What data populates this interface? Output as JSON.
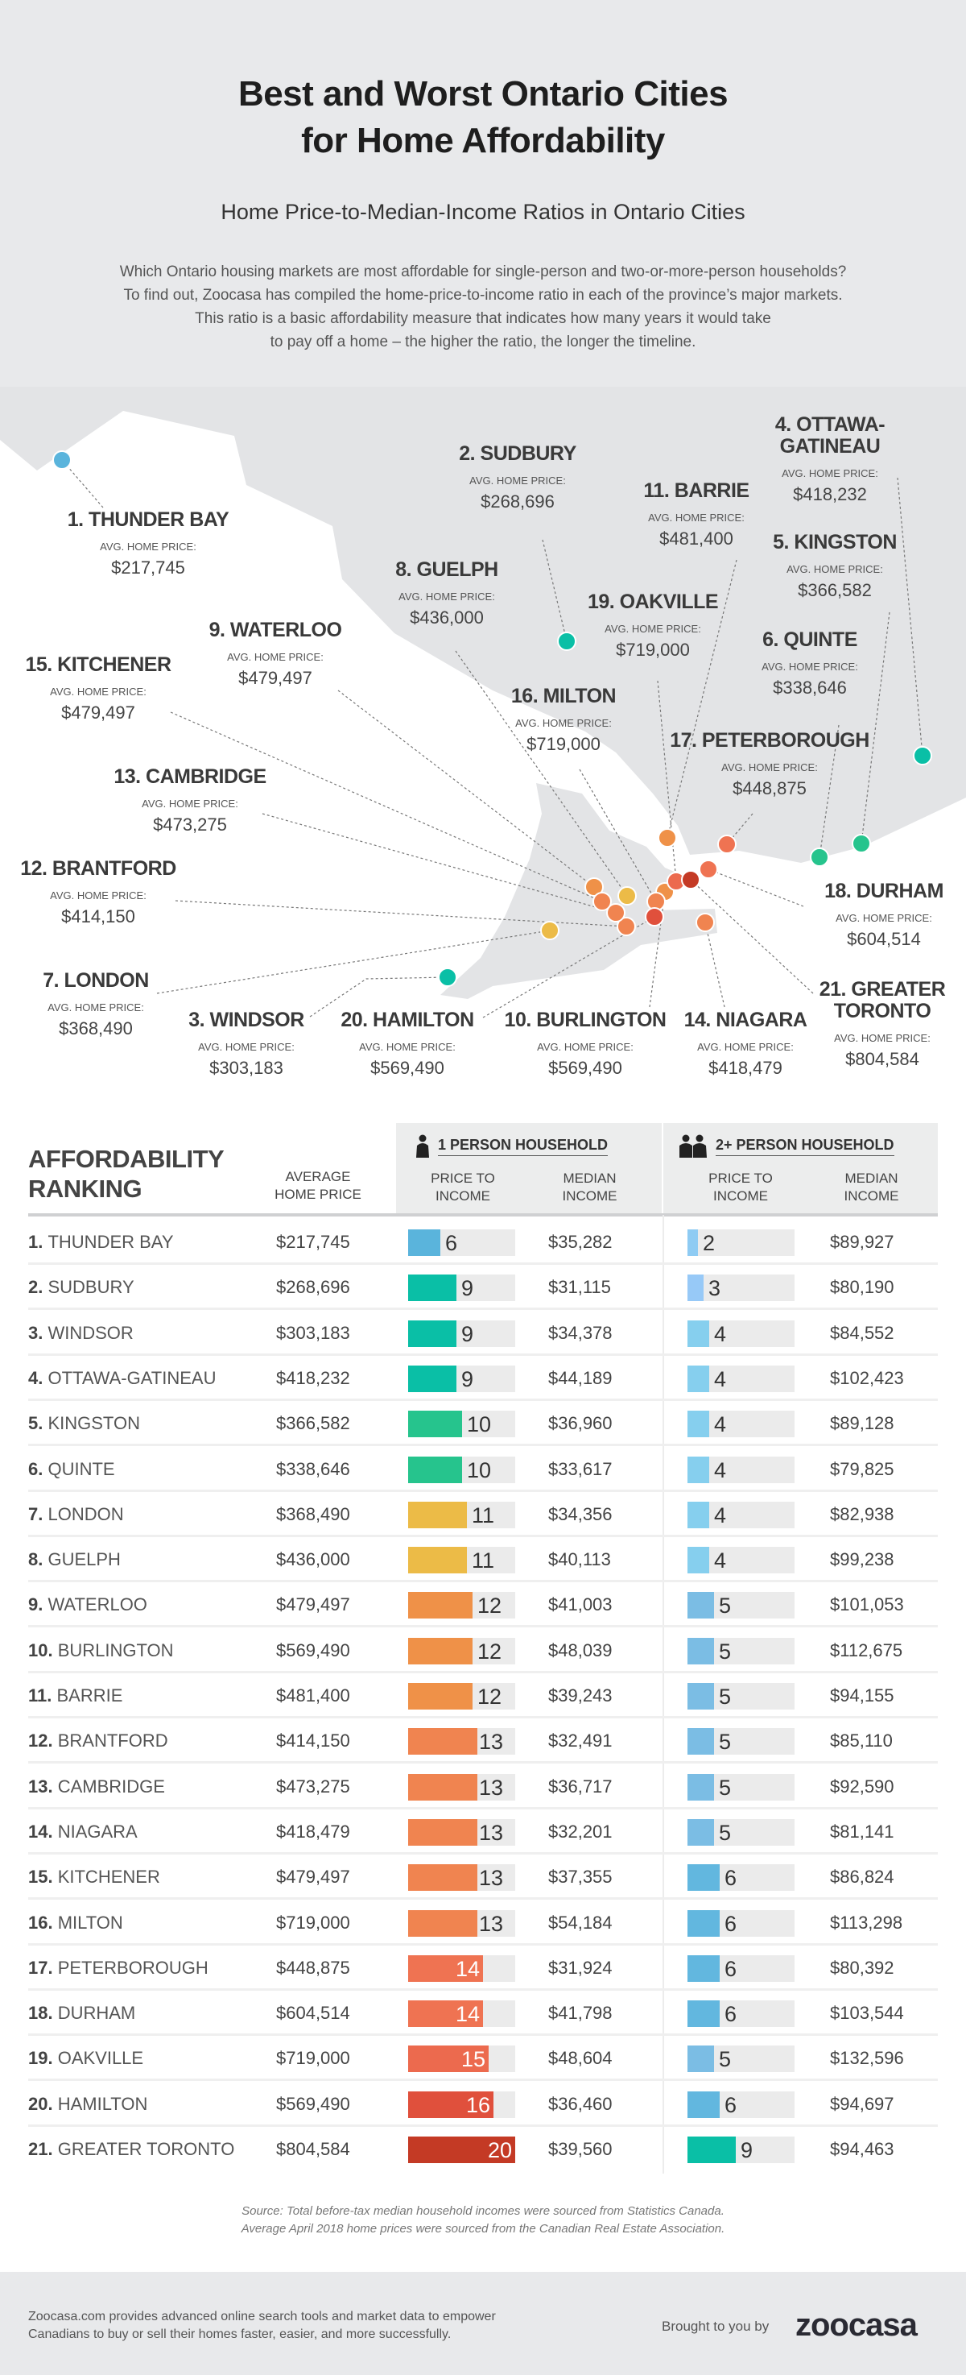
{
  "header": {
    "title_line1": "Best and Worst Ontario Cities",
    "title_line2": "for Home Affordability",
    "subtitle": "Home Price-to-Median-Income Ratios in Ontario Cities",
    "intro": [
      "Which Ontario housing markets are most affordable for single-person and two-or-more-person households?",
      "To find out, Zoocasa has compiled the home-price-to-income ratio in each of the province’s major markets.",
      "This ratio is a basic affordability measure that indicates how many years it would take",
      "to pay off a home – the higher the ratio, the longer the timeline."
    ]
  },
  "map": {
    "avg_label": "AVG. HOME PRICE:"
  },
  "table": {
    "ranking_title_line1": "AFFORDABILITY",
    "ranking_title_line2": "RANKING",
    "avg_price_header_line1": "AVERAGE",
    "avg_price_header_line2": "HOME PRICE",
    "one_person_header": "1 PERSON HOUSEHOLD",
    "two_person_header": "2+ PERSON HOUSEHOLD",
    "ratio_header_line1": "PRICE TO",
    "ratio_header_line2": "INCOME",
    "income_header_line1": "MEDIAN",
    "income_header_line2": "INCOME"
  },
  "chart_data": {
    "type": "table",
    "columns": [
      "Affordability Ranking",
      "Average Home Price",
      "1 Person Household: Price to Income",
      "1 Person Household: Median Income",
      "2+ Person Household: Price to Income",
      "2+ Person Household: Median Income"
    ],
    "rows": [
      {
        "rank": "1.",
        "city": "THUNDER BAY",
        "avg_price": "$217,745",
        "p1_ratio": 6,
        "p1_income": "$35,282",
        "p2_ratio": 2,
        "p2_income": "$89,927",
        "p1_color": "#5ab4dc",
        "p2_color": "#8ecbf3"
      },
      {
        "rank": "2.",
        "city": "SUDBURY",
        "avg_price": "$268,696",
        "p1_ratio": 9,
        "p1_income": "$31,115",
        "p2_ratio": 3,
        "p2_income": "$80,190",
        "p1_color": "#0abfa6",
        "p2_color": "#97c9f7"
      },
      {
        "rank": "3.",
        "city": "WINDSOR",
        "avg_price": "$303,183",
        "p1_ratio": 9,
        "p1_income": "$34,378",
        "p2_ratio": 4,
        "p2_income": "$84,552",
        "p1_color": "#0abfa6",
        "p2_color": "#86cfee"
      },
      {
        "rank": "4.",
        "city": "OTTAWA-GATINEAU",
        "avg_price": "$418,232",
        "p1_ratio": 9,
        "p1_income": "$44,189",
        "p2_ratio": 4,
        "p2_income": "$102,423",
        "p1_color": "#0abfa6",
        "p2_color": "#86cfee"
      },
      {
        "rank": "5.",
        "city": "KINGSTON",
        "avg_price": "$366,582",
        "p1_ratio": 10,
        "p1_income": "$36,960",
        "p2_ratio": 4,
        "p2_income": "$89,128",
        "p1_color": "#26c48d",
        "p2_color": "#86cfee"
      },
      {
        "rank": "6.",
        "city": "QUINTE",
        "avg_price": "$338,646",
        "p1_ratio": 10,
        "p1_income": "$33,617",
        "p2_ratio": 4,
        "p2_income": "$79,825",
        "p1_color": "#26c48d",
        "p2_color": "#86cfee"
      },
      {
        "rank": "7.",
        "city": "LONDON",
        "avg_price": "$368,490",
        "p1_ratio": 11,
        "p1_income": "$34,356",
        "p2_ratio": 4,
        "p2_income": "$82,938",
        "p1_color": "#ecbb47",
        "p2_color": "#86cfee"
      },
      {
        "rank": "8.",
        "city": "GUELPH",
        "avg_price": "$436,000",
        "p1_ratio": 11,
        "p1_income": "$40,113",
        "p2_ratio": 4,
        "p2_income": "$99,238",
        "p1_color": "#ecbb47",
        "p2_color": "#86cfee"
      },
      {
        "rank": "9.",
        "city": "WATERLOO",
        "avg_price": "$479,497",
        "p1_ratio": 12,
        "p1_income": "$41,003",
        "p2_ratio": 5,
        "p2_income": "$101,053",
        "p1_color": "#ef9148",
        "p2_color": "#7bbde4"
      },
      {
        "rank": "10.",
        "city": "BURLINGTON",
        "avg_price": "$569,490",
        "p1_ratio": 12,
        "p1_income": "$48,039",
        "p2_ratio": 5,
        "p2_income": "$112,675",
        "p1_color": "#ef9148",
        "p2_color": "#7bbde4"
      },
      {
        "rank": "11.",
        "city": "BARRIE",
        "avg_price": "$481,400",
        "p1_ratio": 12,
        "p1_income": "$39,243",
        "p2_ratio": 5,
        "p2_income": "$94,155",
        "p1_color": "#ef9148",
        "p2_color": "#7bbde4"
      },
      {
        "rank": "12.",
        "city": "BRANTFORD",
        "avg_price": "$414,150",
        "p1_ratio": 13,
        "p1_income": "$32,491",
        "p2_ratio": 5,
        "p2_income": "$85,110",
        "p1_color": "#f08450",
        "p2_color": "#7bbde4"
      },
      {
        "rank": "13.",
        "city": "CAMBRIDGE",
        "avg_price": "$473,275",
        "p1_ratio": 13,
        "p1_income": "$36,717",
        "p2_ratio": 5,
        "p2_income": "$92,590",
        "p1_color": "#f08450",
        "p2_color": "#7bbde4"
      },
      {
        "rank": "14.",
        "city": "NIAGARA",
        "avg_price": "$418,479",
        "p1_ratio": 13,
        "p1_income": "$32,201",
        "p2_ratio": 5,
        "p2_income": "$81,141",
        "p1_color": "#f08450",
        "p2_color": "#7bbde4"
      },
      {
        "rank": "15.",
        "city": "KITCHENER",
        "avg_price": "$479,497",
        "p1_ratio": 13,
        "p1_income": "$37,355",
        "p2_ratio": 6,
        "p2_income": "$86,824",
        "p1_color": "#f08450",
        "p2_color": "#62b7df"
      },
      {
        "rank": "16.",
        "city": "MILTON",
        "avg_price": "$719,000",
        "p1_ratio": 13,
        "p1_income": "$54,184",
        "p2_ratio": 6,
        "p2_income": "$113,298",
        "p1_color": "#f08450",
        "p2_color": "#62b7df"
      },
      {
        "rank": "17.",
        "city": "PETERBOROUGH",
        "avg_price": "$448,875",
        "p1_ratio": 14,
        "p1_income": "$31,924",
        "p2_ratio": 6,
        "p2_income": "$80,392",
        "p1_color": "#ef7352",
        "p2_color": "#62b7df"
      },
      {
        "rank": "18.",
        "city": "DURHAM",
        "avg_price": "$604,514",
        "p1_ratio": 14,
        "p1_income": "$41,798",
        "p2_ratio": 6,
        "p2_income": "$103,544",
        "p1_color": "#ef7352",
        "p2_color": "#62b7df"
      },
      {
        "rank": "19.",
        "city": "OAKVILLE",
        "avg_price": "$719,000",
        "p1_ratio": 15,
        "p1_income": "$48,604",
        "p2_ratio": 5,
        "p2_income": "$132,596",
        "p1_color": "#ec6a4e",
        "p2_color": "#7bbde4"
      },
      {
        "rank": "20.",
        "city": "HAMILTON",
        "avg_price": "$569,490",
        "p1_ratio": 16,
        "p1_income": "$36,460",
        "p2_ratio": 6,
        "p2_income": "$94,697",
        "p1_color": "#e0503c",
        "p2_color": "#62b7df"
      },
      {
        "rank": "21.",
        "city": "GREATER TORONTO",
        "avg_price": "$804,584",
        "p1_ratio": 20,
        "p1_income": "$39,560",
        "p2_ratio": 9,
        "p2_income": "$94,463",
        "p1_color": "#c43a25",
        "p2_color": "#0abfa6"
      }
    ],
    "bar_max": 20
  },
  "source": {
    "line1": "Source: Total before-tax median household incomes were sourced from Statistics Canada.",
    "line2": "Average April 2018 home prices were sourced from the Canadian Real Estate Association."
  },
  "footer": {
    "description_line1": "Zoocasa.com provides advanced online search tools and market data to empower",
    "description_line2": "Canadians to buy or sell their homes faster, easier, and more successfully.",
    "brought_by": "Brought to you by",
    "logo": "zoocasa"
  },
  "colors": {
    "background_gray": "#e8e9eb",
    "land": "#e3e4e6",
    "track": "#ebebeb"
  }
}
